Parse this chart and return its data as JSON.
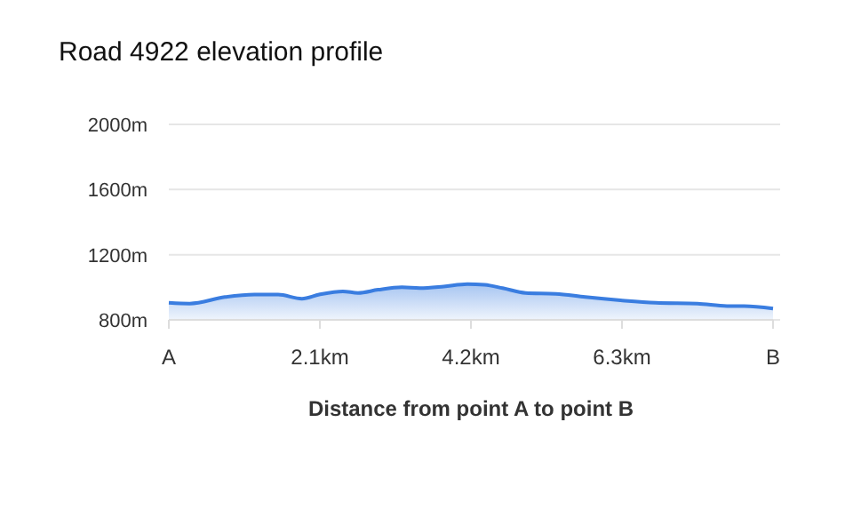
{
  "chart_data": {
    "type": "area",
    "title": "Road 4922 elevation profile",
    "xlabel": "Distance from point A to point B",
    "x": [
      0,
      0.29,
      0.78,
      1.19,
      1.52,
      1.85,
      2.09,
      2.42,
      2.63,
      2.91,
      3.24,
      3.49,
      3.82,
      4.15,
      4.39,
      4.64,
      4.96,
      5.38,
      5.79,
      6.28,
      6.77,
      7.35,
      7.76,
      8.0,
      8.4
    ],
    "series": [
      {
        "color": "#3a7de0",
        "values": [
          905,
          900,
          940,
          955,
          955,
          930,
          955,
          975,
          965,
          985,
          1000,
          995,
          1005,
          1020,
          1015,
          995,
          965,
          960,
          940,
          920,
          905,
          900,
          885,
          885,
          870
        ]
      }
    ],
    "xlim": [
      0,
      8.4
    ],
    "xticks": [
      {
        "value": 0,
        "label": "A"
      },
      {
        "value": 2.1,
        "label": "2.1km"
      },
      {
        "value": 4.2,
        "label": "4.2km"
      },
      {
        "value": 6.3,
        "label": "6.3km"
      },
      {
        "value": 8.4,
        "label": "B"
      }
    ],
    "ylim": [
      800,
      2000
    ],
    "yticks": [
      {
        "value": 800,
        "label": "800m"
      },
      {
        "value": 1200,
        "label": "1200m"
      },
      {
        "value": 1600,
        "label": "1600m"
      },
      {
        "value": 2000,
        "label": "2000m"
      }
    ],
    "grid": "y"
  }
}
